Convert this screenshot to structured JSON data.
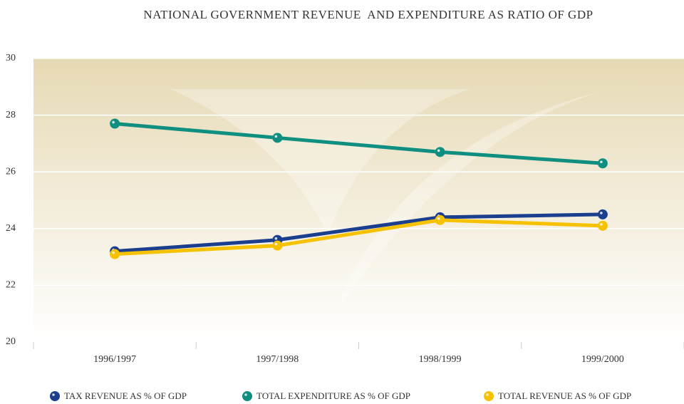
{
  "chart_data": {
    "type": "line",
    "title": "NATIONAL GOVERNMENT REVENUE  AND EXPENDITURE AS RATIO OF GDP",
    "categories": [
      "1996/1997",
      "1997/1998",
      "1998/1999",
      "1999/2000"
    ],
    "series": [
      {
        "name": "TAX REVENUE AS % OF GDP",
        "color": "#1b3f8e",
        "values": [
          23.2,
          23.6,
          24.4,
          24.5
        ]
      },
      {
        "name": "TOTAL EXPENDITURE AS % OF GDP",
        "color": "#0e8f80",
        "values": [
          27.7,
          27.2,
          26.7,
          26.3
        ]
      },
      {
        "name": "TOTAL REVENUE AS % OF GDP",
        "color": "#f6c200",
        "values": [
          23.1,
          23.4,
          24.3,
          24.1
        ]
      }
    ],
    "ylim": [
      20,
      30
    ],
    "yticks": [
      20,
      22,
      24,
      26,
      28,
      30
    ],
    "grid": true
  }
}
